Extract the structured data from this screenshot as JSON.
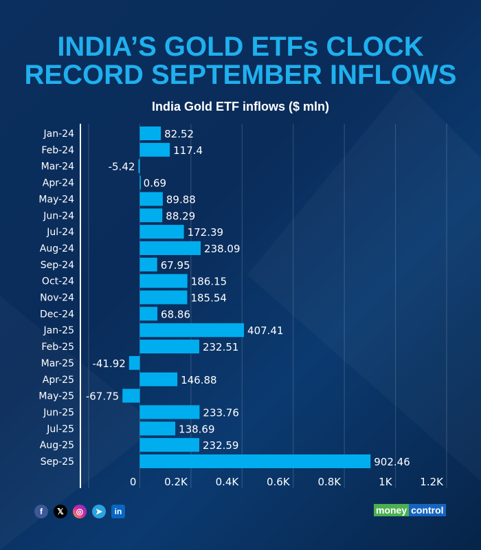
{
  "header": {
    "title_line1": "INDIA’S GOLD ETFs CLOCK",
    "title_line2": "RECORD SEPTEMBER INFLOWS",
    "subtitle": "India Gold ETF inflows ($ mln)"
  },
  "chart_data": {
    "type": "bar",
    "orientation": "horizontal",
    "title": "INDIA’S GOLD ETFs CLOCK RECORD SEPTEMBER INFLOWS",
    "subtitle": "India Gold ETF inflows ($ mln)",
    "categories": [
      "Jan-24",
      "Feb-24",
      "Mar-24",
      "Apr-24",
      "May-24",
      "Jun-24",
      "Jul-24",
      "Aug-24",
      "Sep-24",
      "Oct-24",
      "Nov-24",
      "Dec-24",
      "Jan-25",
      "Feb-25",
      "Mar-25",
      "Apr-25",
      "May-25",
      "Jun-25",
      "Jul-25",
      "Aug-25",
      "Sep-25"
    ],
    "values": [
      82.52,
      117.4,
      -5.42,
      0.69,
      89.88,
      88.29,
      172.39,
      238.09,
      67.95,
      186.15,
      185.54,
      68.86,
      407.41,
      232.51,
      -41.92,
      146.88,
      -67.75,
      233.76,
      138.69,
      232.59,
      902.46
    ],
    "value_labels": [
      "82.52",
      "117.4",
      "-5.42",
      "0.69",
      "89.88",
      "88.29",
      "172.39",
      "238.09",
      "67.95",
      "186.15",
      "185.54",
      "68.86",
      "407.41",
      "232.51",
      "-41.92",
      "146.88",
      "-67.75",
      "233.76",
      "138.69",
      "232.59",
      "902.46"
    ],
    "xlim": [
      -200,
      1200
    ],
    "xticks": [
      0,
      200,
      400,
      600,
      800,
      1000,
      1200
    ],
    "xtick_labels": [
      "0",
      "0.2K",
      "0.4K",
      "0.6K",
      "0.8K",
      "1K",
      "1.2K"
    ],
    "grid": true,
    "bar_color": "#00aeef"
  },
  "footer": {
    "social_icons": [
      "facebook-icon",
      "x-icon",
      "instagram-icon",
      "telegram-icon",
      "linkedin-icon"
    ],
    "logo_part1": "money",
    "logo_part2": "control"
  },
  "colors": {
    "background": "#0b2f5e",
    "title": "#1fb0ee",
    "bar": "#00aeef",
    "logo_green": "#4caf50",
    "logo_blue": "#1565c0"
  }
}
